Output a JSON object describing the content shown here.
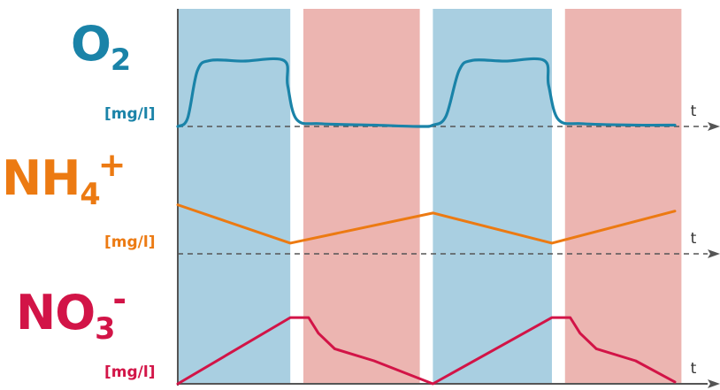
{
  "colors": {
    "aerobic_band": "#a9cfe1",
    "anoxic_band": "#ecb5b1",
    "o2": "#1a83a8",
    "nh4": "#ec7a12",
    "no3": "#d21447",
    "axis": "#555555"
  },
  "labels": {
    "o2": {
      "base": "O",
      "sub": "2",
      "sup": "",
      "unit": "[mg/l]"
    },
    "nh4": {
      "base": "NH",
      "sub": "4",
      "sup": "+",
      "unit": "[mg/l]"
    },
    "no3": {
      "base": "NO",
      "sub": "3",
      "sup": "-",
      "unit": "[mg/l]"
    }
  },
  "chart_data": {
    "type": "line",
    "x_range": [
      0,
      8
    ],
    "phases": [
      {
        "name": "aerobic",
        "start": 0,
        "end": 1.72
      },
      {
        "name": "anoxic",
        "start": 1.92,
        "end": 3.7
      },
      {
        "name": "aerobic",
        "start": 3.9,
        "end": 5.72
      },
      {
        "name": "anoxic",
        "start": 5.92,
        "end": 7.7
      }
    ],
    "panels": [
      {
        "series": "O2",
        "axis_label": "t",
        "ylim": [
          0,
          1
        ],
        "x": [
          0,
          0.15,
          0.3,
          0.5,
          1.0,
          1.62,
          1.68,
          1.82,
          2.2,
          3.0,
          3.7,
          3.9,
          4.1,
          4.3,
          4.5,
          5.0,
          5.6,
          5.67,
          5.82,
          6.2,
          7.0,
          7.6
        ],
        "y": [
          0,
          0.12,
          0.82,
          0.97,
          0.96,
          0.97,
          0.6,
          0.1,
          0.04,
          0.02,
          0.0,
          0.02,
          0.15,
          0.82,
          0.97,
          0.96,
          0.97,
          0.6,
          0.1,
          0.04,
          0.02,
          0.02
        ]
      },
      {
        "series": "NH4+",
        "axis_label": "t",
        "ylim": [
          0,
          1
        ],
        "x": [
          0,
          1.72,
          3.9,
          5.72,
          7.6
        ],
        "y": [
          0.78,
          0.17,
          0.65,
          0.17,
          0.68
        ]
      },
      {
        "series": "NO3-",
        "axis_label": "t",
        "ylim": [
          0,
          1
        ],
        "x": [
          0,
          1.72,
          2.0,
          2.15,
          2.4,
          3.0,
          3.9,
          5.72,
          6.0,
          6.15,
          6.4,
          7.0,
          7.6
        ],
        "y": [
          0,
          0.72,
          0.72,
          0.55,
          0.38,
          0.25,
          0,
          0.72,
          0.72,
          0.55,
          0.38,
          0.25,
          0.02
        ]
      }
    ]
  }
}
